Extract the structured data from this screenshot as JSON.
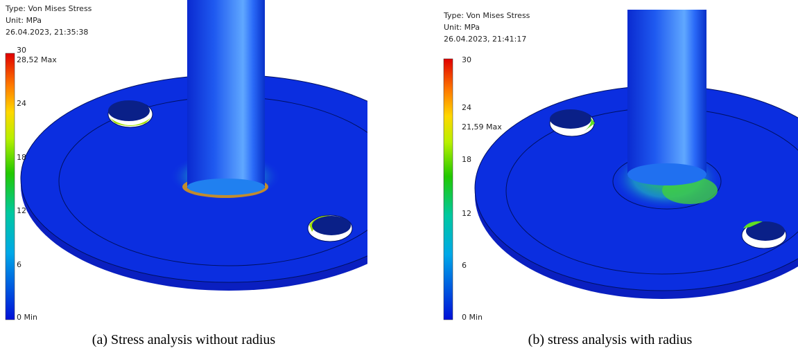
{
  "panels": [
    {
      "header": {
        "type": "Type: Von Mises Stress",
        "unit": "Unit: MPa",
        "timestamp": "26.04.2023, 21:35:38"
      },
      "legend": {
        "ticks": [
          "30",
          "24",
          "18",
          "12",
          "6"
        ],
        "max": "28,52 Max",
        "min": "0 Min"
      },
      "caption": "(a) Stress analysis without radius"
    },
    {
      "header": {
        "type": "Type: Von Mises Stress",
        "unit": "Unit: MPa",
        "timestamp": "26.04.2023, 21:41:17"
      },
      "legend": {
        "ticks": [
          "30",
          "24",
          "18",
          "12",
          "6"
        ],
        "max": "21,59 Max",
        "min": "0 Min"
      },
      "caption": "(b) stress analysis with radius"
    }
  ]
}
